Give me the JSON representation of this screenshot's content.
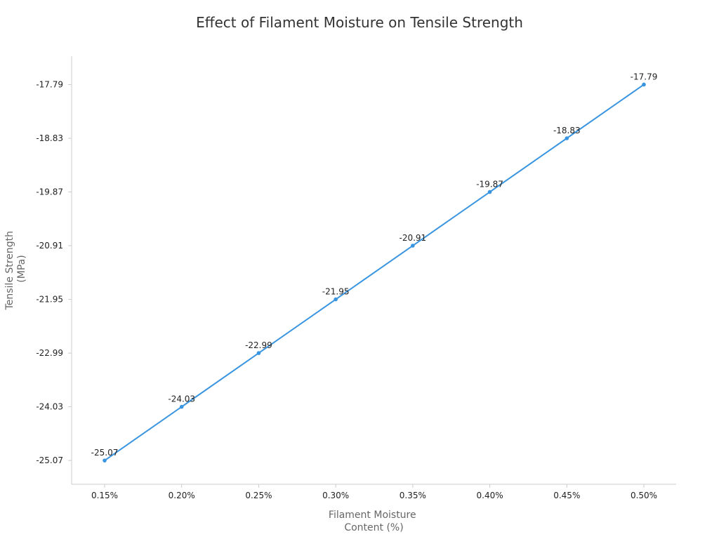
{
  "chart_data": {
    "type": "line",
    "title": "Effect of Filament Moisture on Tensile Strength",
    "xlabel": [
      "Filament Moisture",
      "Content (%)"
    ],
    "ylabel": [
      "Tensile Strength",
      "(MPa)"
    ],
    "categories": [
      "0.15%",
      "0.20%",
      "0.25%",
      "0.30%",
      "0.35%",
      "0.40%",
      "0.45%",
      "0.50%"
    ],
    "series": [
      {
        "values": [
          -25.07,
          -24.03,
          -22.99,
          -21.95,
          -20.91,
          -19.87,
          -18.83,
          -17.79
        ],
        "data_labels": [
          "-25.07",
          "-24.03",
          "-22.99",
          "-21.95",
          "-20.91",
          "-19.87",
          "-18.83",
          "-17.79"
        ],
        "color": "#3a95e0"
      }
    ],
    "y_ticks": [
      -25.07,
      -24.03,
      -22.99,
      -21.95,
      -20.91,
      -19.87,
      -18.83,
      -17.79
    ],
    "y_tick_labels": [
      "-25.07",
      "-24.03",
      "-22.99",
      "-21.95",
      "-20.91",
      "-19.87",
      "-18.83",
      "-17.79"
    ],
    "ylim": [
      -25.53,
      -17.24
    ],
    "grid": false,
    "legend": "none",
    "axis_color": "#cccccc"
  }
}
